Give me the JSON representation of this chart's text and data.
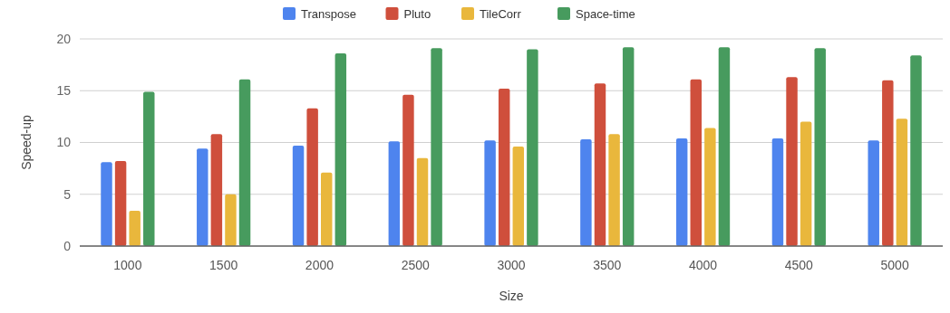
{
  "chart_data": {
    "type": "bar",
    "xlabel": "Size",
    "ylabel": "Speed-up",
    "categories": [
      "1000",
      "1500",
      "2000",
      "2500",
      "3000",
      "3500",
      "4000",
      "4500",
      "5000"
    ],
    "series": [
      {
        "name": "Transpose",
        "color": "#4e84ee",
        "values": [
          8.1,
          9.4,
          9.7,
          10.1,
          10.2,
          10.3,
          10.4,
          10.4,
          10.2
        ]
      },
      {
        "name": "Pluto",
        "color": "#cf4f3c",
        "values": [
          8.2,
          10.8,
          13.3,
          14.6,
          15.2,
          15.7,
          16.1,
          16.3,
          16.0
        ]
      },
      {
        "name": "TileCorr",
        "color": "#e9b73c",
        "values": [
          3.4,
          5.0,
          7.1,
          8.5,
          9.6,
          10.8,
          11.4,
          12.0,
          12.3
        ]
      },
      {
        "name": "Space-time",
        "color": "#479b5e",
        "values": [
          14.9,
          16.1,
          18.6,
          19.1,
          19.0,
          19.2,
          19.2,
          19.1,
          18.4
        ]
      }
    ],
    "ylim": [
      0,
      20
    ],
    "yticks": [
      0,
      5,
      10,
      15,
      20
    ],
    "grid": "y",
    "legend": "top"
  }
}
